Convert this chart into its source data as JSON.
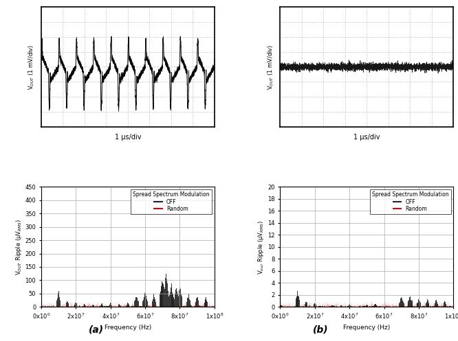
{
  "fig_width": 6.66,
  "fig_height": 4.97,
  "bg_color": "#ffffff",
  "osc_ylabel": "V$_{OUT}$ (1 mV/div)",
  "osc_xlabel": "1 μs/div",
  "spec_xlabel": "Frequency (Hz)",
  "spec_ylabel_a": "V$_{OUT}$ Ripple (μV$_{RMS}$)",
  "spec_ylabel_b": "V$_{our}$ Ripple (μV$_{RMS}$)",
  "spec_ylim_a": [
    0,
    450
  ],
  "spec_ylim_b": [
    0,
    20
  ],
  "spec_yticks_a": [
    0,
    50,
    100,
    150,
    200,
    250,
    300,
    350,
    400,
    450
  ],
  "spec_yticks_b": [
    0,
    2,
    4,
    6,
    8,
    10,
    12,
    14,
    16,
    18,
    20
  ],
  "label_a": "(a)",
  "label_b": "(b)",
  "legend_title": "Spread Spectrum Modulation",
  "legend_off": "OFF",
  "legend_random": "Random",
  "color_off": "#222222",
  "color_random": "#dd0000",
  "osc_grid_color": "#999999",
  "osc_bg": "#ffffff"
}
